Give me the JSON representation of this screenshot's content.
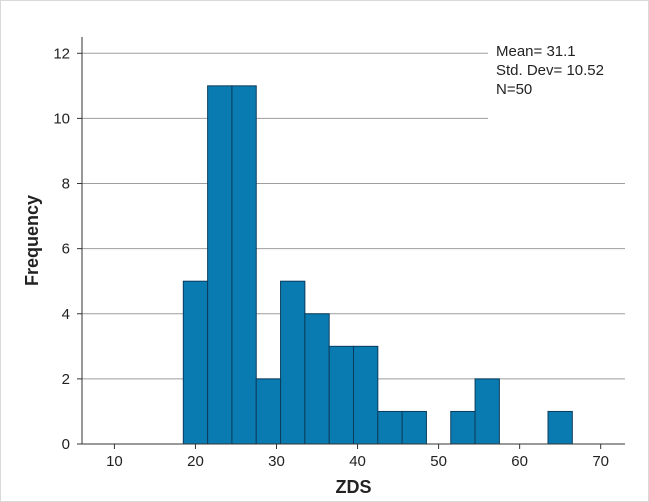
{
  "chart_data": {
    "type": "bar",
    "subtype": "histogram",
    "xlabel": "ZDS",
    "ylabel": "Frequency",
    "xlim": [
      6,
      73
    ],
    "ylim": [
      0,
      12.5
    ],
    "x_ticks": [
      10,
      20,
      30,
      40,
      50,
      60,
      70
    ],
    "y_ticks": [
      0,
      2,
      4,
      6,
      8,
      10,
      12
    ],
    "bin_width": 3,
    "bins": [
      {
        "start": 18.5,
        "value": 5
      },
      {
        "start": 21.5,
        "value": 11
      },
      {
        "start": 24.5,
        "value": 11
      },
      {
        "start": 27.5,
        "value": 2
      },
      {
        "start": 30.5,
        "value": 5
      },
      {
        "start": 33.5,
        "value": 4
      },
      {
        "start": 36.5,
        "value": 3
      },
      {
        "start": 39.5,
        "value": 3
      },
      {
        "start": 42.5,
        "value": 1
      },
      {
        "start": 45.5,
        "value": 1
      },
      {
        "start": 51.5,
        "value": 1
      },
      {
        "start": 54.5,
        "value": 2
      },
      {
        "start": 63.5,
        "value": 1
      }
    ],
    "bar_color": "#0a7bb0",
    "bar_edge_color": "#0b3c5d",
    "grid": "horizontal",
    "stats": {
      "mean": "Mean= 31.1",
      "std": "Std. Dev= 10.52",
      "n": "N=50"
    },
    "stats_placement": "top-right"
  }
}
